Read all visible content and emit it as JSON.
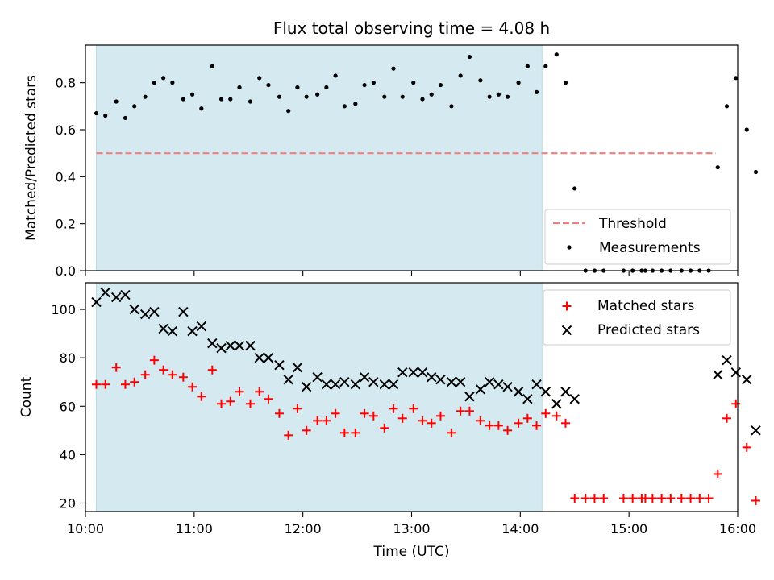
{
  "chart_data": [
    {
      "type": "scatter",
      "title": "Flux total observing time = 4.08 h",
      "ylabel": "Matched/Predicted stars",
      "xlim": [
        "10:00",
        "16:00"
      ],
      "ylim": [
        0,
        0.96
      ],
      "yticks": [
        "0.0",
        "0.2",
        "0.4",
        "0.6",
        "0.8"
      ],
      "shaded_span": [
        "10:06",
        "14:12"
      ],
      "shaded_color": "#d4eaf0",
      "threshold": {
        "name": "Threshold",
        "value": 0.5,
        "x": [
          "10:06",
          "15:48"
        ],
        "color": "#f08080"
      },
      "legend": {
        "placement": "lower right",
        "entries": [
          "Threshold",
          "Measurements"
        ]
      },
      "series": [
        {
          "name": "Measurements",
          "color": "#000000",
          "marker": "dot",
          "points": [
            [
              "10:06",
              0.67
            ],
            [
              "10:11",
              0.66
            ],
            [
              "10:17",
              0.72
            ],
            [
              "10:22",
              0.65
            ],
            [
              "10:27",
              0.7
            ],
            [
              "10:33",
              0.74
            ],
            [
              "10:38",
              0.8
            ],
            [
              "10:43",
              0.82
            ],
            [
              "10:48",
              0.8
            ],
            [
              "10:54",
              0.73
            ],
            [
              "10:59",
              0.75
            ],
            [
              "11:04",
              0.69
            ],
            [
              "11:10",
              0.87
            ],
            [
              "11:15",
              0.73
            ],
            [
              "11:20",
              0.73
            ],
            [
              "11:25",
              0.78
            ],
            [
              "11:31",
              0.72
            ],
            [
              "11:36",
              0.82
            ],
            [
              "11:41",
              0.79
            ],
            [
              "11:47",
              0.74
            ],
            [
              "11:52",
              0.68
            ],
            [
              "11:57",
              0.78
            ],
            [
              "12:02",
              0.74
            ],
            [
              "12:08",
              0.75
            ],
            [
              "12:13",
              0.78
            ],
            [
              "12:18",
              0.83
            ],
            [
              "12:23",
              0.7
            ],
            [
              "12:29",
              0.71
            ],
            [
              "12:34",
              0.79
            ],
            [
              "12:39",
              0.8
            ],
            [
              "12:45",
              0.74
            ],
            [
              "12:50",
              0.86
            ],
            [
              "12:55",
              0.74
            ],
            [
              "13:01",
              0.8
            ],
            [
              "13:06",
              0.73
            ],
            [
              "13:11",
              0.75
            ],
            [
              "13:16",
              0.79
            ],
            [
              "13:22",
              0.7
            ],
            [
              "13:27",
              0.83
            ],
            [
              "13:32",
              0.91
            ],
            [
              "13:38",
              0.81
            ],
            [
              "13:43",
              0.74
            ],
            [
              "13:48",
              0.75
            ],
            [
              "13:53",
              0.74
            ],
            [
              "13:59",
              0.8
            ],
            [
              "14:04",
              0.87
            ],
            [
              "14:09",
              0.76
            ],
            [
              "14:14",
              0.87
            ],
            [
              "14:20",
              0.92
            ],
            [
              "14:25",
              0.8
            ],
            [
              "14:30",
              0.35
            ],
            [
              "14:36",
              0.0
            ],
            [
              "14:41",
              0.0
            ],
            [
              "14:46",
              0.0
            ],
            [
              "14:57",
              0.0
            ],
            [
              "15:02",
              0.0
            ],
            [
              "15:07",
              0.0
            ],
            [
              "15:09",
              0.0
            ],
            [
              "15:13",
              0.0
            ],
            [
              "15:18",
              0.0
            ],
            [
              "15:23",
              0.0
            ],
            [
              "15:29",
              0.0
            ],
            [
              "15:34",
              0.0
            ],
            [
              "15:39",
              0.0
            ],
            [
              "15:44",
              0.0
            ],
            [
              "15:49",
              0.44
            ],
            [
              "15:54",
              0.7
            ],
            [
              "15:59",
              0.82
            ],
            [
              "16:05",
              0.6
            ],
            [
              "16:10",
              0.42
            ]
          ]
        }
      ]
    },
    {
      "type": "scatter",
      "ylabel": "Count",
      "xlabel": "Time (UTC)",
      "xlim": [
        "10:00",
        "16:00"
      ],
      "xticks": [
        "10:00",
        "11:00",
        "12:00",
        "13:00",
        "14:00",
        "15:00",
        "16:00"
      ],
      "ylim": [
        16.5,
        111
      ],
      "yticks": [
        "20",
        "40",
        "60",
        "80",
        "100"
      ],
      "shaded_span": [
        "10:06",
        "14:12"
      ],
      "legend": {
        "placement": "upper right",
        "entries": [
          "Matched stars",
          "Predicted stars"
        ]
      },
      "series": [
        {
          "name": "Matched stars",
          "color": "#ff0000",
          "marker": "plus",
          "points": [
            [
              "10:06",
              69
            ],
            [
              "10:11",
              69
            ],
            [
              "10:17",
              76
            ],
            [
              "10:22",
              69
            ],
            [
              "10:27",
              70
            ],
            [
              "10:33",
              73
            ],
            [
              "10:38",
              79
            ],
            [
              "10:43",
              75
            ],
            [
              "10:48",
              73
            ],
            [
              "10:54",
              72
            ],
            [
              "10:59",
              68
            ],
            [
              "11:04",
              64
            ],
            [
              "11:10",
              75
            ],
            [
              "11:15",
              61
            ],
            [
              "11:20",
              62
            ],
            [
              "11:25",
              66
            ],
            [
              "11:31",
              61
            ],
            [
              "11:36",
              66
            ],
            [
              "11:41",
              63
            ],
            [
              "11:47",
              57
            ],
            [
              "11:52",
              48
            ],
            [
              "11:57",
              59
            ],
            [
              "12:02",
              50
            ],
            [
              "12:08",
              54
            ],
            [
              "12:13",
              54
            ],
            [
              "12:18",
              57
            ],
            [
              "12:23",
              49
            ],
            [
              "12:29",
              49
            ],
            [
              "12:34",
              57
            ],
            [
              "12:39",
              56
            ],
            [
              "12:45",
              51
            ],
            [
              "12:50",
              59
            ],
            [
              "12:55",
              55
            ],
            [
              "13:01",
              59
            ],
            [
              "13:06",
              54
            ],
            [
              "13:11",
              53
            ],
            [
              "13:16",
              56
            ],
            [
              "13:22",
              49
            ],
            [
              "13:27",
              58
            ],
            [
              "13:32",
              58
            ],
            [
              "13:38",
              54
            ],
            [
              "13:43",
              52
            ],
            [
              "13:48",
              52
            ],
            [
              "13:53",
              50
            ],
            [
              "13:59",
              53
            ],
            [
              "14:04",
              55
            ],
            [
              "14:09",
              52
            ],
            [
              "14:14",
              57
            ],
            [
              "14:20",
              56
            ],
            [
              "14:25",
              53
            ],
            [
              "14:30",
              22
            ],
            [
              "14:36",
              22
            ],
            [
              "14:41",
              22
            ],
            [
              "14:46",
              22
            ],
            [
              "14:57",
              22
            ],
            [
              "15:02",
              22
            ],
            [
              "15:07",
              22
            ],
            [
              "15:09",
              22
            ],
            [
              "15:13",
              22
            ],
            [
              "15:18",
              22
            ],
            [
              "15:23",
              22
            ],
            [
              "15:29",
              22
            ],
            [
              "15:34",
              22
            ],
            [
              "15:39",
              22
            ],
            [
              "15:44",
              22
            ],
            [
              "15:49",
              32
            ],
            [
              "15:54",
              55
            ],
            [
              "15:59",
              61
            ],
            [
              "16:05",
              43
            ],
            [
              "16:10",
              21
            ]
          ]
        },
        {
          "name": "Predicted stars",
          "color": "#000000",
          "marker": "x",
          "points": [
            [
              "10:06",
              103
            ],
            [
              "10:11",
              107
            ],
            [
              "10:17",
              105
            ],
            [
              "10:22",
              106
            ],
            [
              "10:27",
              100
            ],
            [
              "10:33",
              98
            ],
            [
              "10:38",
              99
            ],
            [
              "10:43",
              92
            ],
            [
              "10:48",
              91
            ],
            [
              "10:54",
              99
            ],
            [
              "10:59",
              91
            ],
            [
              "11:04",
              93
            ],
            [
              "11:10",
              86
            ],
            [
              "11:15",
              84
            ],
            [
              "11:20",
              85
            ],
            [
              "11:25",
              85
            ],
            [
              "11:31",
              85
            ],
            [
              "11:36",
              80
            ],
            [
              "11:41",
              80
            ],
            [
              "11:47",
              77
            ],
            [
              "11:52",
              71
            ],
            [
              "11:57",
              76
            ],
            [
              "12:02",
              68
            ],
            [
              "12:08",
              72
            ],
            [
              "12:13",
              69
            ],
            [
              "12:18",
              69
            ],
            [
              "12:23",
              70
            ],
            [
              "12:29",
              69
            ],
            [
              "12:34",
              72
            ],
            [
              "12:39",
              70
            ],
            [
              "12:45",
              69
            ],
            [
              "12:50",
              69
            ],
            [
              "12:55",
              74
            ],
            [
              "13:01",
              74
            ],
            [
              "13:06",
              74
            ],
            [
              "13:11",
              72
            ],
            [
              "13:16",
              71
            ],
            [
              "13:22",
              70
            ],
            [
              "13:27",
              70
            ],
            [
              "13:32",
              64
            ],
            [
              "13:38",
              67
            ],
            [
              "13:43",
              70
            ],
            [
              "13:48",
              69
            ],
            [
              "13:53",
              68
            ],
            [
              "13:59",
              66
            ],
            [
              "14:04",
              63
            ],
            [
              "14:09",
              69
            ],
            [
              "14:14",
              66
            ],
            [
              "14:20",
              61
            ],
            [
              "14:25",
              66
            ],
            [
              "14:30",
              63
            ],
            [
              "15:49",
              73
            ],
            [
              "15:54",
              79
            ],
            [
              "15:59",
              74
            ],
            [
              "16:05",
              71
            ],
            [
              "16:10",
              50
            ]
          ]
        }
      ]
    }
  ]
}
